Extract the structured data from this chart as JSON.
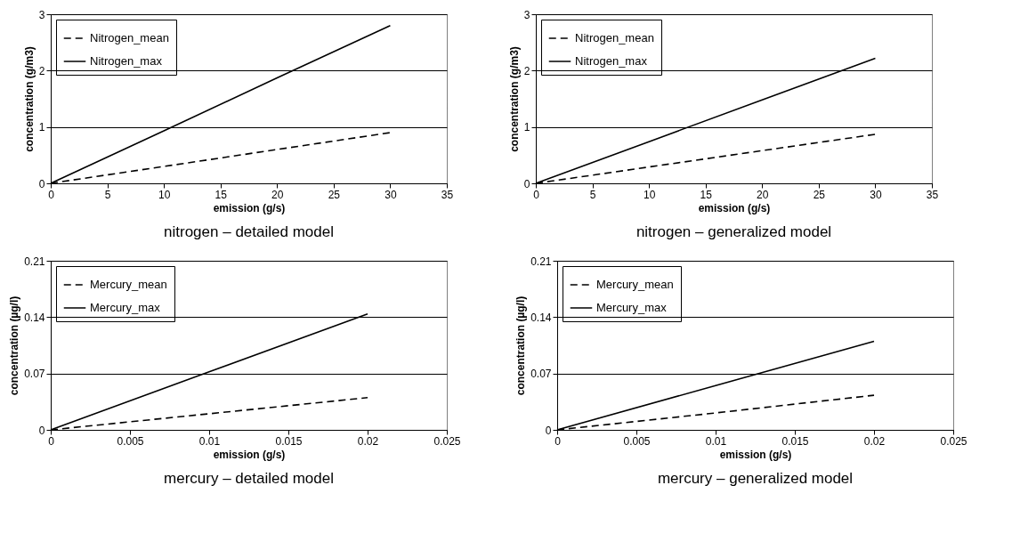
{
  "chart_data": [
    {
      "type": "line",
      "title": "nitrogen – detailed model",
      "xlabel": "emission (g/s)",
      "ylabel": "concentration (g/m3)",
      "x": [
        0,
        10,
        20,
        30
      ],
      "xlim": [
        0,
        35
      ],
      "xticks": [
        0,
        5,
        10,
        15,
        20,
        25,
        30,
        35
      ],
      "ylim": [
        0,
        3
      ],
      "yticks": [
        0,
        1,
        2,
        3
      ],
      "grid": "y",
      "legend": "top left",
      "series": [
        {
          "name": "Nitrogen_mean",
          "color": "#000000",
          "line_style": "dashed",
          "values": [
            0,
            0.3,
            0.6,
            0.9
          ]
        },
        {
          "name": "Nitrogen_max",
          "color": "#000000",
          "line_style": "solid",
          "values": [
            0,
            0.93,
            1.87,
            2.8
          ]
        }
      ]
    },
    {
      "type": "line",
      "title": "nitrogen – generalized model",
      "xlabel": "emission (g/s)",
      "ylabel": "concentration (g/m3)",
      "x": [
        0,
        10,
        20,
        30
      ],
      "xlim": [
        0,
        35
      ],
      "xticks": [
        0,
        5,
        10,
        15,
        20,
        25,
        30,
        35
      ],
      "ylim": [
        0,
        3
      ],
      "yticks": [
        0,
        1,
        2,
        3
      ],
      "grid": "y",
      "legend": "top left",
      "series": [
        {
          "name": "Nitrogen_mean",
          "color": "#000000",
          "line_style": "dashed",
          "values": [
            0,
            0.29,
            0.58,
            0.87
          ]
        },
        {
          "name": "Nitrogen_max",
          "color": "#000000",
          "line_style": "solid",
          "values": [
            0,
            0.74,
            1.48,
            2.22
          ]
        }
      ]
    },
    {
      "type": "line",
      "title": "mercury – detailed model",
      "xlabel": "emission (g/s)",
      "ylabel": "concentration (µg/l)",
      "x": [
        0,
        0.01,
        0.02
      ],
      "xlim": [
        0,
        0.025
      ],
      "xticks": [
        0,
        0.005,
        0.01,
        0.015,
        0.02,
        0.025
      ],
      "ylim": [
        0,
        0.21
      ],
      "yticks": [
        0,
        0.07,
        0.14,
        0.21
      ],
      "grid": "y",
      "legend": "top left",
      "series": [
        {
          "name": "Mercury_mean",
          "color": "#000000",
          "line_style": "dashed",
          "values": [
            0,
            0.02,
            0.04
          ]
        },
        {
          "name": "Mercury_max",
          "color": "#000000",
          "line_style": "solid",
          "values": [
            0,
            0.072,
            0.144
          ]
        }
      ]
    },
    {
      "type": "line",
      "title": "mercury – generalized model",
      "xlabel": "emission (g/s)",
      "ylabel": "concentration (µg/l)",
      "x": [
        0,
        0.01,
        0.02
      ],
      "xlim": [
        0,
        0.025
      ],
      "xticks": [
        0,
        0.005,
        0.01,
        0.015,
        0.02,
        0.025
      ],
      "ylim": [
        0,
        0.21
      ],
      "yticks": [
        0,
        0.07,
        0.14,
        0.21
      ],
      "grid": "y",
      "legend": "top left",
      "series": [
        {
          "name": "Mercury_mean",
          "color": "#000000",
          "line_style": "dashed",
          "values": [
            0,
            0.021,
            0.043
          ]
        },
        {
          "name": "Mercury_max",
          "color": "#000000",
          "line_style": "solid",
          "values": [
            0,
            0.055,
            0.11
          ]
        }
      ]
    }
  ]
}
